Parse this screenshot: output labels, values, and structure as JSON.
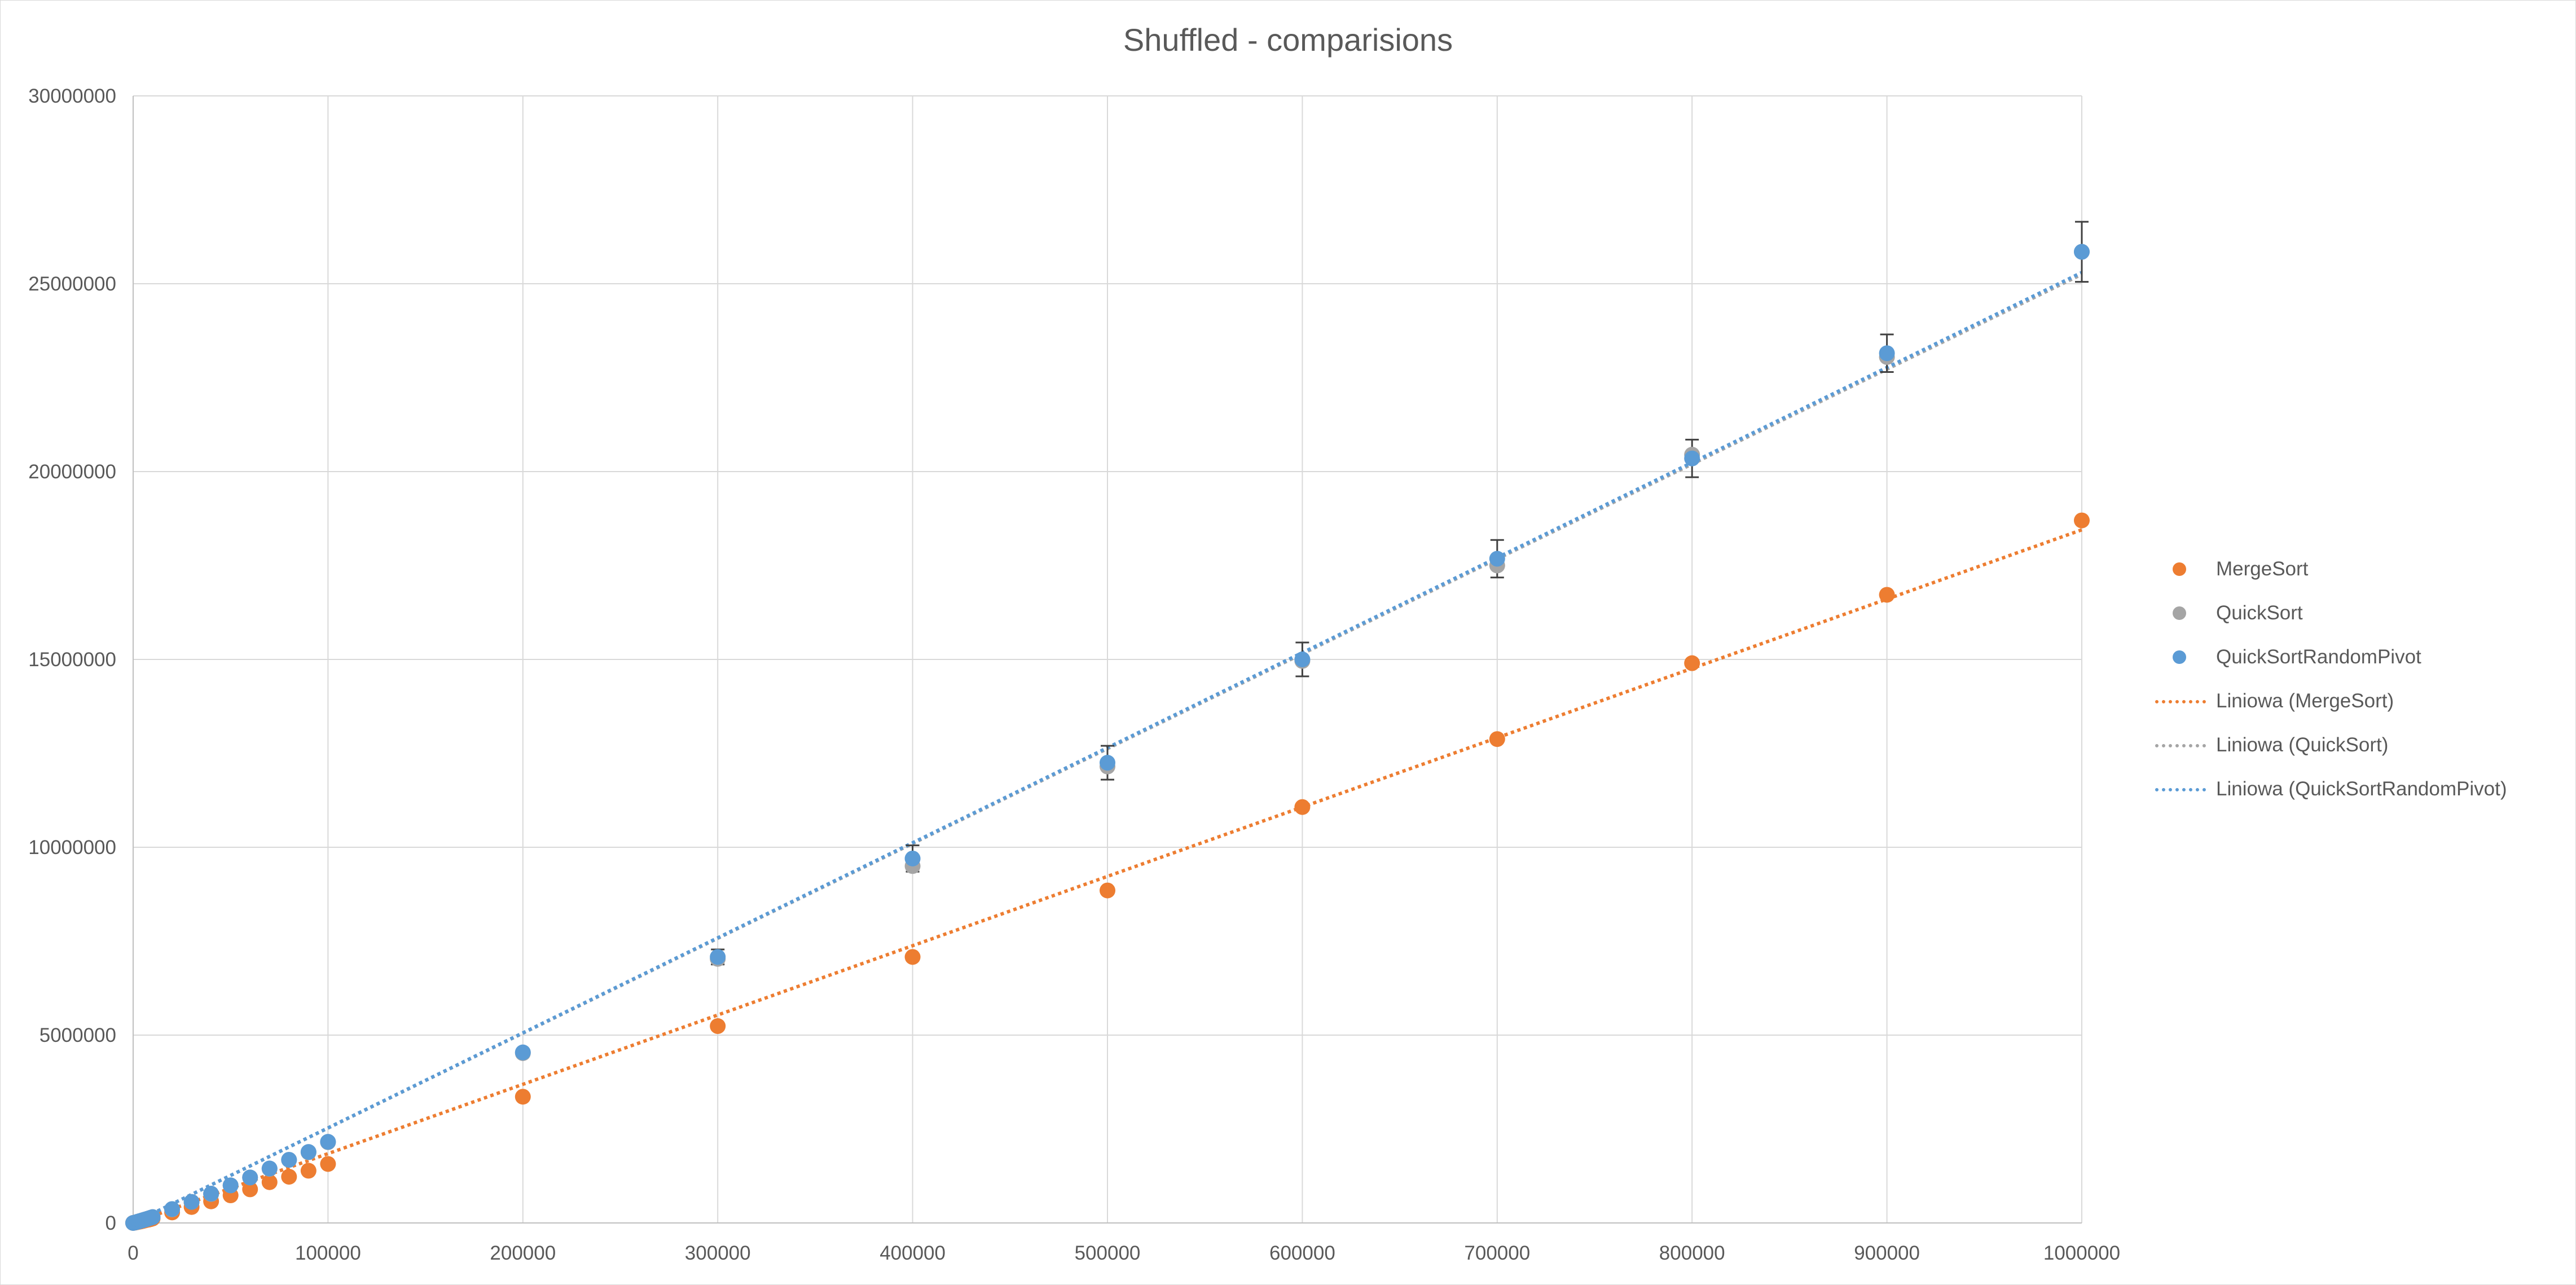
{
  "chart_data": {
    "type": "scatter",
    "title": "Shuffled - comparisions",
    "xlabel": "",
    "ylabel": "",
    "xlim": [
      0,
      1000000
    ],
    "ylim": [
      0,
      30000000
    ],
    "x_ticks": [
      "0",
      "100000",
      "200000",
      "300000",
      "400000",
      "500000",
      "600000",
      "700000",
      "800000",
      "900000",
      "1000000"
    ],
    "y_ticks": [
      "0",
      "5000000",
      "10000000",
      "15000000",
      "20000000",
      "25000000",
      "30000000"
    ],
    "grid": true,
    "legend_position": "right",
    "x": [
      0,
      1000,
      2000,
      3000,
      4000,
      5000,
      6000,
      7000,
      8000,
      9000,
      10000,
      20000,
      30000,
      40000,
      50000,
      60000,
      70000,
      80000,
      90000,
      100000,
      200000,
      300000,
      400000,
      500000,
      600000,
      700000,
      800000,
      900000,
      1000000
    ],
    "series": [
      {
        "name": "MergeSort",
        "color": "#ed7d31",
        "values": [
          0,
          9000,
          20000,
          31000,
          42000,
          54000,
          67000,
          79000,
          90000,
          103000,
          120000,
          280000,
          425000,
          575000,
          735000,
          895000,
          1085000,
          1230000,
          1390000,
          1570000,
          3360000,
          5240000,
          7080000,
          8850000,
          11070000,
          12880000,
          14900000,
          16720000,
          18700000
        ]
      },
      {
        "name": "QuickSort",
        "color": "#a5a5a5",
        "values": [
          0,
          12000,
          28000,
          43000,
          58000,
          74000,
          90000,
          105000,
          122000,
          138000,
          155000,
          360000,
          560000,
          770000,
          1000000,
          1210000,
          1440000,
          1680000,
          1880000,
          2150000,
          4520000,
          7030000,
          9500000,
          12150000,
          14960000,
          17500000,
          20450000,
          23050000,
          25850000
        ]
      },
      {
        "name": "QuickSortRandomPivot",
        "color": "#5b9bd5",
        "values": [
          0,
          12000,
          28000,
          43000,
          58000,
          74000,
          90000,
          105000,
          122000,
          138000,
          155000,
          370000,
          560000,
          780000,
          1000000,
          1210000,
          1450000,
          1680000,
          1890000,
          2160000,
          4540000,
          7080000,
          9700000,
          12250000,
          15000000,
          17680000,
          20350000,
          23150000,
          25850000
        ],
        "error": [
          0,
          0,
          0,
          0,
          0,
          0,
          0,
          0,
          0,
          0,
          0,
          0,
          0,
          0,
          0,
          0,
          0,
          0,
          0,
          0,
          80000,
          200000,
          350000,
          450000,
          450000,
          500000,
          500000,
          500000,
          800000
        ]
      }
    ],
    "trendlines": [
      {
        "name": "Liniowa (MergeSort)",
        "color": "#ed7d31",
        "type": "linear",
        "from": [
          0,
          0
        ],
        "to": [
          1000000,
          18450000
        ]
      },
      {
        "name": "Liniowa (QuickSort)",
        "color": "#a5a5a5",
        "type": "linear",
        "from": [
          0,
          0
        ],
        "to": [
          1000000,
          25250000
        ]
      },
      {
        "name": "Liniowa (QuickSortRandomPivot)",
        "color": "#5b9bd5",
        "type": "linear",
        "from": [
          0,
          0
        ],
        "to": [
          1000000,
          25300000
        ]
      }
    ]
  },
  "legend": [
    {
      "label": "MergeSort",
      "kind": "marker",
      "color": "#ed7d31"
    },
    {
      "label": "QuickSort",
      "kind": "marker",
      "color": "#a5a5a5"
    },
    {
      "label": "QuickSortRandomPivot",
      "kind": "marker",
      "color": "#5b9bd5"
    },
    {
      "label": "Liniowa (MergeSort)",
      "kind": "trendline",
      "color": "#ed7d31"
    },
    {
      "label": "Liniowa (QuickSort)",
      "kind": "trendline",
      "color": "#a5a5a5"
    },
    {
      "label": "Liniowa (QuickSortRandomPivot)",
      "kind": "trendline",
      "color": "#5b9bd5"
    }
  ]
}
